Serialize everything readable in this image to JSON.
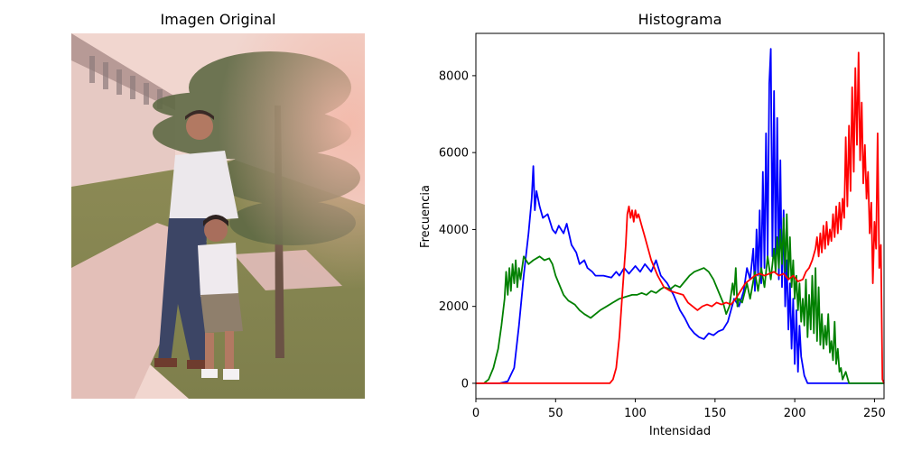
{
  "left_panel": {
    "title": "Imagen Original"
  },
  "chart_data": {
    "type": "line",
    "title": "Histograma",
    "xlabel": "Intensidad",
    "ylabel": "Frecuencia",
    "xlim": [
      0,
      256
    ],
    "ylim": [
      -400,
      9100
    ],
    "xticks": [
      0,
      50,
      100,
      150,
      200,
      250
    ],
    "yticks": [
      0,
      2000,
      4000,
      6000,
      8000
    ],
    "grid": false,
    "series": [
      {
        "color": "#0000ff",
        "points": [
          [
            0,
            0
          ],
          [
            15,
            0
          ],
          [
            20,
            50
          ],
          [
            24,
            400
          ],
          [
            27,
            1500
          ],
          [
            30,
            2800
          ],
          [
            33,
            3900
          ],
          [
            35,
            4800
          ],
          [
            36,
            5650
          ],
          [
            37,
            4500
          ],
          [
            38,
            5000
          ],
          [
            40,
            4600
          ],
          [
            42,
            4300
          ],
          [
            45,
            4400
          ],
          [
            48,
            4000
          ],
          [
            50,
            3900
          ],
          [
            52,
            4100
          ],
          [
            55,
            3900
          ],
          [
            57,
            4150
          ],
          [
            60,
            3600
          ],
          [
            63,
            3400
          ],
          [
            65,
            3100
          ],
          [
            68,
            3200
          ],
          [
            70,
            3000
          ],
          [
            73,
            2900
          ],
          [
            75,
            2800
          ],
          [
            80,
            2800
          ],
          [
            85,
            2750
          ],
          [
            88,
            2900
          ],
          [
            90,
            2800
          ],
          [
            93,
            3000
          ],
          [
            96,
            2850
          ],
          [
            100,
            3050
          ],
          [
            103,
            2900
          ],
          [
            106,
            3100
          ],
          [
            110,
            2900
          ],
          [
            113,
            3200
          ],
          [
            116,
            2800
          ],
          [
            120,
            2600
          ],
          [
            124,
            2300
          ],
          [
            128,
            1900
          ],
          [
            131,
            1700
          ],
          [
            134,
            1450
          ],
          [
            137,
            1300
          ],
          [
            140,
            1200
          ],
          [
            143,
            1150
          ],
          [
            146,
            1300
          ],
          [
            149,
            1250
          ],
          [
            152,
            1350
          ],
          [
            155,
            1400
          ],
          [
            158,
            1600
          ],
          [
            160,
            1900
          ],
          [
            162,
            2200
          ],
          [
            165,
            2000
          ],
          [
            168,
            2400
          ],
          [
            170,
            3000
          ],
          [
            172,
            2700
          ],
          [
            174,
            3500
          ],
          [
            175,
            2400
          ],
          [
            176,
            4000
          ],
          [
            177,
            2800
          ],
          [
            178,
            4500
          ],
          [
            179,
            2600
          ],
          [
            180,
            5500
          ],
          [
            181,
            3000
          ],
          [
            182,
            6500
          ],
          [
            183,
            3300
          ],
          [
            184,
            7800
          ],
          [
            185,
            8700
          ],
          [
            186,
            3300
          ],
          [
            187,
            7600
          ],
          [
            188,
            3000
          ],
          [
            189,
            6900
          ],
          [
            190,
            2700
          ],
          [
            191,
            5800
          ],
          [
            192,
            2500
          ],
          [
            193,
            4500
          ],
          [
            194,
            2000
          ],
          [
            195,
            3200
          ],
          [
            196,
            1400
          ],
          [
            197,
            2600
          ],
          [
            198,
            900
          ],
          [
            199,
            2200
          ],
          [
            200,
            500
          ],
          [
            201,
            1900
          ],
          [
            202,
            300
          ],
          [
            203,
            1500
          ],
          [
            204,
            700
          ],
          [
            206,
            200
          ],
          [
            208,
            0
          ],
          [
            256,
            0
          ]
        ]
      },
      {
        "color": "#008000",
        "points": [
          [
            0,
            0
          ],
          [
            5,
            0
          ],
          [
            8,
            100
          ],
          [
            11,
            400
          ],
          [
            14,
            900
          ],
          [
            16,
            1500
          ],
          [
            18,
            2200
          ],
          [
            19,
            2900
          ],
          [
            20,
            2300
          ],
          [
            21,
            3000
          ],
          [
            22,
            2400
          ],
          [
            23,
            3100
          ],
          [
            24,
            2600
          ],
          [
            25,
            3200
          ],
          [
            26,
            2500
          ],
          [
            27,
            3000
          ],
          [
            28,
            2700
          ],
          [
            30,
            3300
          ],
          [
            33,
            3100
          ],
          [
            36,
            3200
          ],
          [
            40,
            3300
          ],
          [
            43,
            3200
          ],
          [
            46,
            3250
          ],
          [
            48,
            3100
          ],
          [
            50,
            2800
          ],
          [
            52,
            2600
          ],
          [
            55,
            2300
          ],
          [
            58,
            2150
          ],
          [
            62,
            2050
          ],
          [
            65,
            1900
          ],
          [
            68,
            1800
          ],
          [
            70,
            1750
          ],
          [
            72,
            1700
          ],
          [
            75,
            1800
          ],
          [
            78,
            1900
          ],
          [
            82,
            2000
          ],
          [
            86,
            2100
          ],
          [
            90,
            2200
          ],
          [
            94,
            2250
          ],
          [
            98,
            2300
          ],
          [
            101,
            2300
          ],
          [
            104,
            2350
          ],
          [
            107,
            2300
          ],
          [
            110,
            2400
          ],
          [
            113,
            2350
          ],
          [
            116,
            2450
          ],
          [
            118,
            2500
          ],
          [
            122,
            2450
          ],
          [
            125,
            2550
          ],
          [
            128,
            2500
          ],
          [
            131,
            2650
          ],
          [
            134,
            2800
          ],
          [
            137,
            2900
          ],
          [
            140,
            2950
          ],
          [
            143,
            3000
          ],
          [
            146,
            2900
          ],
          [
            149,
            2700
          ],
          [
            152,
            2400
          ],
          [
            155,
            2100
          ],
          [
            157,
            1800
          ],
          [
            159,
            2000
          ],
          [
            161,
            2600
          ],
          [
            162,
            2300
          ],
          [
            163,
            3000
          ],
          [
            164,
            2000
          ],
          [
            165,
            2200
          ],
          [
            167,
            2100
          ],
          [
            170,
            2600
          ],
          [
            172,
            2200
          ],
          [
            175,
            2900
          ],
          [
            177,
            2400
          ],
          [
            179,
            3000
          ],
          [
            181,
            2500
          ],
          [
            183,
            3300
          ],
          [
            185,
            2700
          ],
          [
            187,
            3500
          ],
          [
            188,
            2900
          ],
          [
            189,
            3800
          ],
          [
            190,
            3000
          ],
          [
            191,
            4000
          ],
          [
            192,
            3100
          ],
          [
            193,
            4300
          ],
          [
            194,
            2900
          ],
          [
            195,
            4400
          ],
          [
            196,
            2700
          ],
          [
            197,
            3800
          ],
          [
            198,
            2500
          ],
          [
            199,
            3200
          ],
          [
            200,
            2200
          ],
          [
            201,
            2800
          ],
          [
            202,
            1900
          ],
          [
            203,
            2600
          ],
          [
            204,
            1600
          ],
          [
            205,
            2200
          ],
          [
            206,
            1500
          ],
          [
            207,
            2700
          ],
          [
            208,
            1200
          ],
          [
            209,
            2300
          ],
          [
            210,
            1400
          ],
          [
            211,
            2800
          ],
          [
            212,
            1300
          ],
          [
            213,
            3000
          ],
          [
            214,
            1100
          ],
          [
            215,
            2500
          ],
          [
            216,
            1000
          ],
          [
            217,
            1800
          ],
          [
            218,
            900
          ],
          [
            219,
            1500
          ],
          [
            220,
            1000
          ],
          [
            221,
            1800
          ],
          [
            222,
            800
          ],
          [
            223,
            1100
          ],
          [
            224,
            600
          ],
          [
            225,
            1600
          ],
          [
            226,
            500
          ],
          [
            227,
            900
          ],
          [
            228,
            300
          ],
          [
            229,
            400
          ],
          [
            230,
            100
          ],
          [
            232,
            300
          ],
          [
            234,
            0
          ],
          [
            256,
            0
          ]
        ]
      },
      {
        "color": "#ff0000",
        "points": [
          [
            0,
            0
          ],
          [
            84,
            0
          ],
          [
            86,
            100
          ],
          [
            88,
            400
          ],
          [
            90,
            1200
          ],
          [
            92,
            2400
          ],
          [
            94,
            3600
          ],
          [
            95,
            4400
          ],
          [
            96,
            4600
          ],
          [
            97,
            4300
          ],
          [
            98,
            4500
          ],
          [
            99,
            4200
          ],
          [
            100,
            4500
          ],
          [
            101,
            4300
          ],
          [
            102,
            4400
          ],
          [
            104,
            4100
          ],
          [
            106,
            3800
          ],
          [
            108,
            3500
          ],
          [
            110,
            3200
          ],
          [
            112,
            3000
          ],
          [
            114,
            2800
          ],
          [
            116,
            2650
          ],
          [
            118,
            2500
          ],
          [
            122,
            2400
          ],
          [
            126,
            2350
          ],
          [
            130,
            2300
          ],
          [
            133,
            2100
          ],
          [
            136,
            2000
          ],
          [
            139,
            1900
          ],
          [
            142,
            2000
          ],
          [
            145,
            2050
          ],
          [
            148,
            2000
          ],
          [
            151,
            2100
          ],
          [
            154,
            2050
          ],
          [
            157,
            2100
          ],
          [
            160,
            2050
          ],
          [
            163,
            2200
          ],
          [
            166,
            2400
          ],
          [
            169,
            2600
          ],
          [
            172,
            2700
          ],
          [
            175,
            2800
          ],
          [
            178,
            2850
          ],
          [
            181,
            2800
          ],
          [
            184,
            2850
          ],
          [
            187,
            2900
          ],
          [
            190,
            2800
          ],
          [
            193,
            2850
          ],
          [
            196,
            2700
          ],
          [
            199,
            2800
          ],
          [
            202,
            2650
          ],
          [
            205,
            2700
          ],
          [
            207,
            2900
          ],
          [
            209,
            3000
          ],
          [
            211,
            3200
          ],
          [
            213,
            3500
          ],
          [
            214,
            3800
          ],
          [
            215,
            3300
          ],
          [
            216,
            3900
          ],
          [
            217,
            3400
          ],
          [
            218,
            4100
          ],
          [
            219,
            3500
          ],
          [
            220,
            4200
          ],
          [
            221,
            3600
          ],
          [
            222,
            4000
          ],
          [
            223,
            3700
          ],
          [
            224,
            4400
          ],
          [
            225,
            3800
          ],
          [
            226,
            4600
          ],
          [
            227,
            3900
          ],
          [
            228,
            4700
          ],
          [
            229,
            4000
          ],
          [
            230,
            4800
          ],
          [
            231,
            4300
          ],
          [
            232,
            6400
          ],
          [
            233,
            4600
          ],
          [
            234,
            6700
          ],
          [
            235,
            5000
          ],
          [
            236,
            7700
          ],
          [
            237,
            5500
          ],
          [
            238,
            8200
          ],
          [
            239,
            6200
          ],
          [
            240,
            8600
          ],
          [
            241,
            5800
          ],
          [
            242,
            7300
          ],
          [
            243,
            5200
          ],
          [
            244,
            6200
          ],
          [
            245,
            4800
          ],
          [
            246,
            5500
          ],
          [
            247,
            3900
          ],
          [
            248,
            4700
          ],
          [
            249,
            2600
          ],
          [
            250,
            4200
          ],
          [
            251,
            3500
          ],
          [
            252,
            6500
          ],
          [
            253,
            3000
          ],
          [
            254,
            3600
          ],
          [
            255,
            100
          ],
          [
            256,
            0
          ]
        ]
      }
    ]
  }
}
